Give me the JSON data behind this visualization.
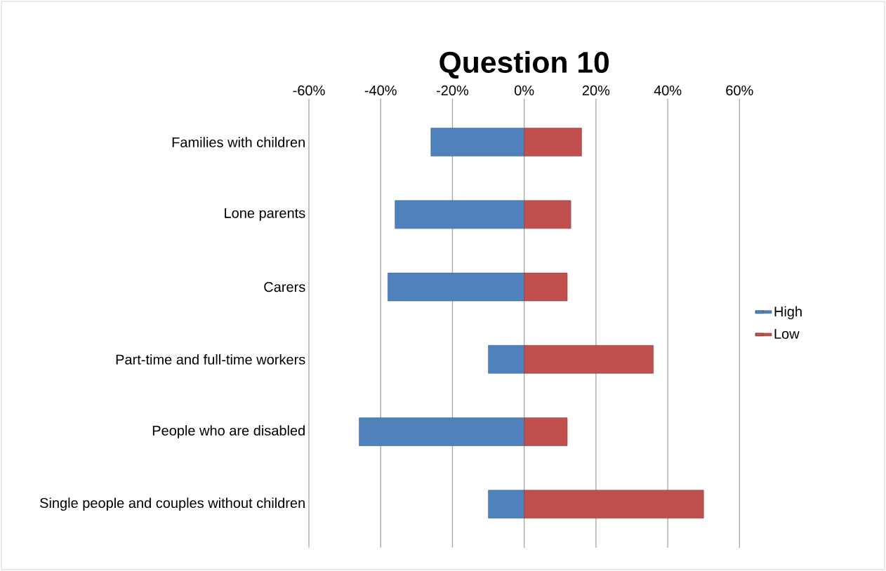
{
  "chart_data": {
    "type": "bar",
    "orientation": "horizontal",
    "title": "Question 10",
    "categories": [
      "Families with children",
      "Lone parents",
      "Carers",
      "Part-time and full-time workers",
      "People who are disabled",
      "Single people and couples without children"
    ],
    "series": [
      {
        "name": "High",
        "color": "#4f81bd",
        "values": [
          -26,
          -36,
          -38,
          -10,
          -46,
          -10
        ]
      },
      {
        "name": "Low",
        "color": "#c0504d",
        "values": [
          16,
          13,
          12,
          36,
          12,
          50
        ]
      }
    ],
    "xlim": [
      -60,
      60
    ],
    "xticks": [
      {
        "value": -60,
        "label": "-60%"
      },
      {
        "value": -40,
        "label": "-40%"
      },
      {
        "value": -20,
        "label": "-20%"
      },
      {
        "value": 0,
        "label": "0%"
      },
      {
        "value": 20,
        "label": "20%"
      },
      {
        "value": 40,
        "label": "40%"
      },
      {
        "value": 60,
        "label": "60%"
      }
    ],
    "grid": "x",
    "legend": "right",
    "stacked": true
  }
}
